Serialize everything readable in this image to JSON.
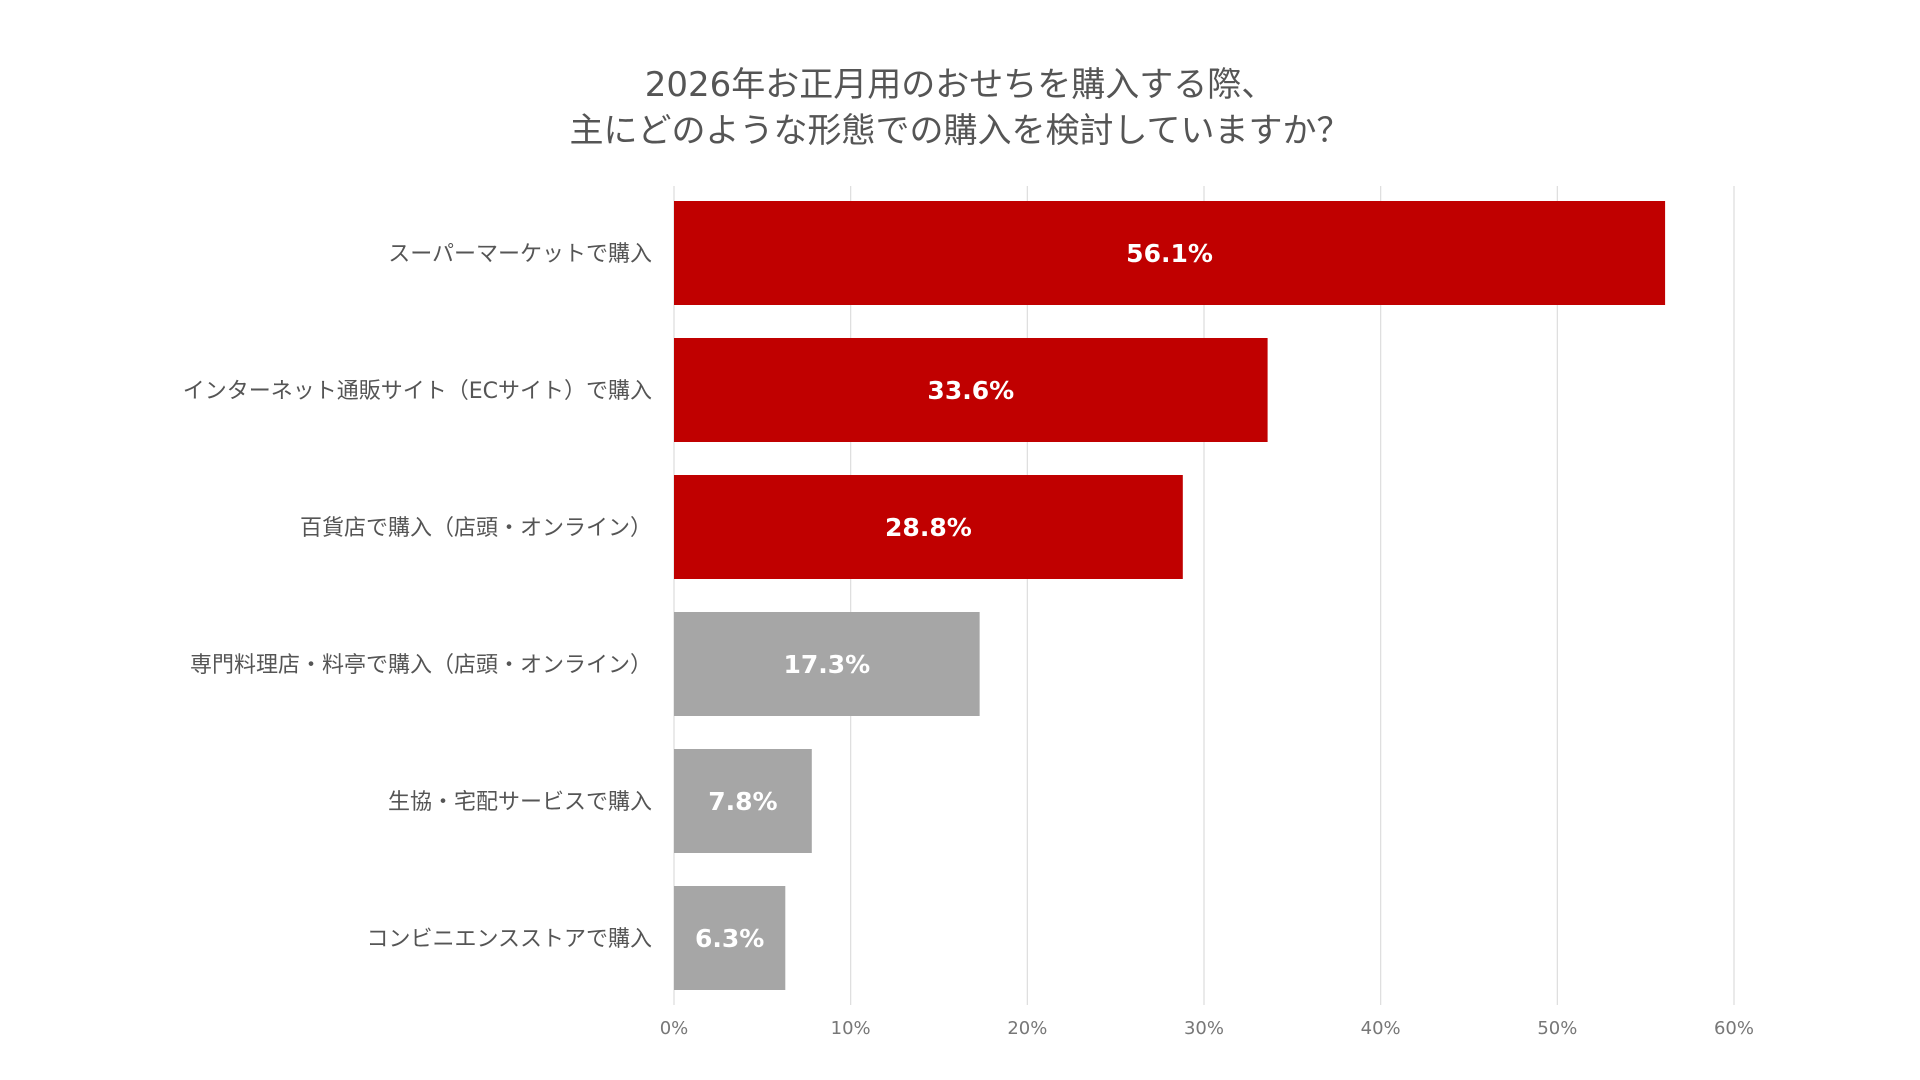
{
  "chart_data": {
    "type": "bar",
    "orientation": "horizontal",
    "title": [
      "2026年お正月用のおせちを購入する際、",
      "主にどのような形態での購入を検討していますか？"
    ],
    "categories": [
      "スーパーマーケットで購入",
      "インターネット通販サイト（ECサイト）で購入",
      "百貨店で購入（店頭・オンライン）",
      "専門料理店・料亭で購入（店頭・オンライン）",
      "生協・宅配サービスで購入",
      "コンビニエンスストアで購入"
    ],
    "values": [
      56.1,
      33.6,
      28.8,
      17.3,
      7.8,
      6.3
    ],
    "value_labels": [
      "56.1%",
      "33.6%",
      "28.8%",
      "17.3%",
      "7.8%",
      "6.3%"
    ],
    "highlight": [
      true,
      true,
      true,
      false,
      false,
      false
    ],
    "xlim": [
      0,
      60
    ],
    "xticks": [
      0,
      10,
      20,
      30,
      40,
      50,
      60
    ],
    "xtick_labels": [
      "0%",
      "10%",
      "20%",
      "30%",
      "40%",
      "50%",
      "60%"
    ],
    "grid": "vertical",
    "legend": "none",
    "colors": {
      "highlight": "#c00000",
      "other": "#a6a6a6",
      "grid": "#dddddd"
    }
  }
}
